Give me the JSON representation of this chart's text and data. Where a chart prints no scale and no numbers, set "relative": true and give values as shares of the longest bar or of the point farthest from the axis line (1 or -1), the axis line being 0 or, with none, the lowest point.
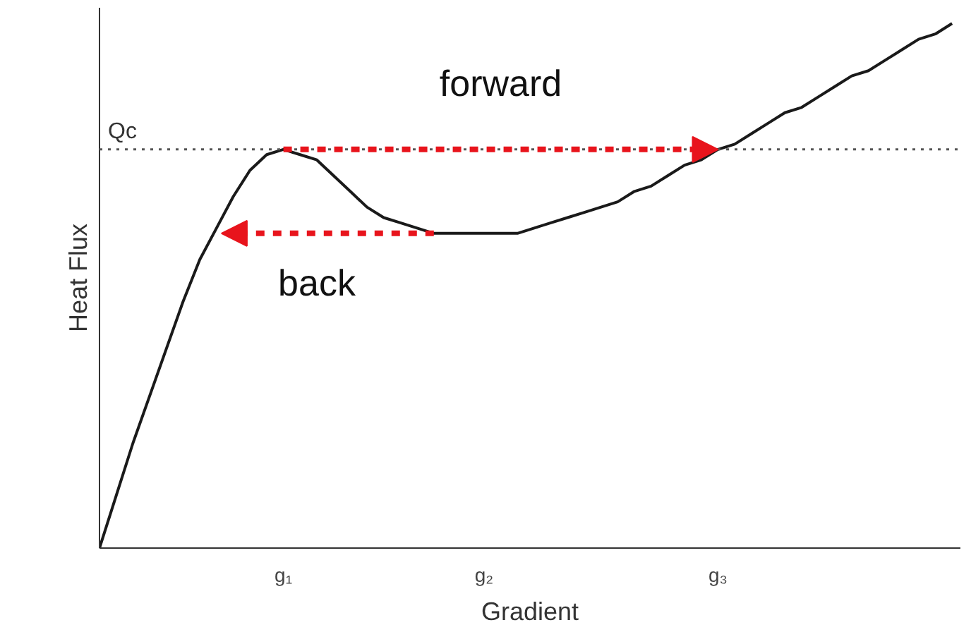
{
  "chart_data": {
    "type": "line",
    "relative": true,
    "xlabel": "Gradient",
    "ylabel": "Heat Flux",
    "categories": [
      null,
      null,
      null,
      null,
      null,
      null,
      null,
      null,
      null,
      null,
      null,
      "g₁",
      null,
      null,
      null,
      null,
      null,
      null,
      null,
      null,
      null,
      null,
      null,
      "g₂",
      null,
      null,
      null,
      null,
      null,
      null,
      null,
      null,
      null,
      null,
      null,
      null,
      null,
      "g₃",
      null,
      null,
      null,
      null,
      null,
      null,
      null,
      null,
      null,
      null,
      null,
      null,
      null,
      null
    ],
    "series": [
      {
        "color": "#1a1a1a",
        "values": [
          0,
          0.1,
          0.2,
          0.29,
          0.38,
          0.47,
          0.55,
          0.61,
          0.67,
          0.72,
          0.75,
          0.76,
          0.75,
          0.74,
          0.71,
          0.68,
          0.65,
          0.63,
          0.62,
          0.61,
          0.6,
          0.6,
          0.6,
          0.6,
          0.6,
          0.6,
          0.61,
          0.62,
          0.63,
          0.64,
          0.65,
          0.66,
          0.68,
          0.69,
          0.71,
          0.73,
          0.74,
          0.76,
          0.77,
          0.79,
          0.81,
          0.83,
          0.84,
          0.86,
          0.88,
          0.9,
          0.91,
          0.93,
          0.95,
          0.97,
          0.98,
          1
        ]
      }
    ],
    "ref_lines": [
      {
        "axis": "y",
        "value": 0.76,
        "label": "Qc",
        "color": "#555555",
        "line_style": "dotted"
      }
    ],
    "annotations": [
      "forward",
      "back"
    ],
    "marker": "none",
    "line_style": "solid",
    "grid": false
  }
}
